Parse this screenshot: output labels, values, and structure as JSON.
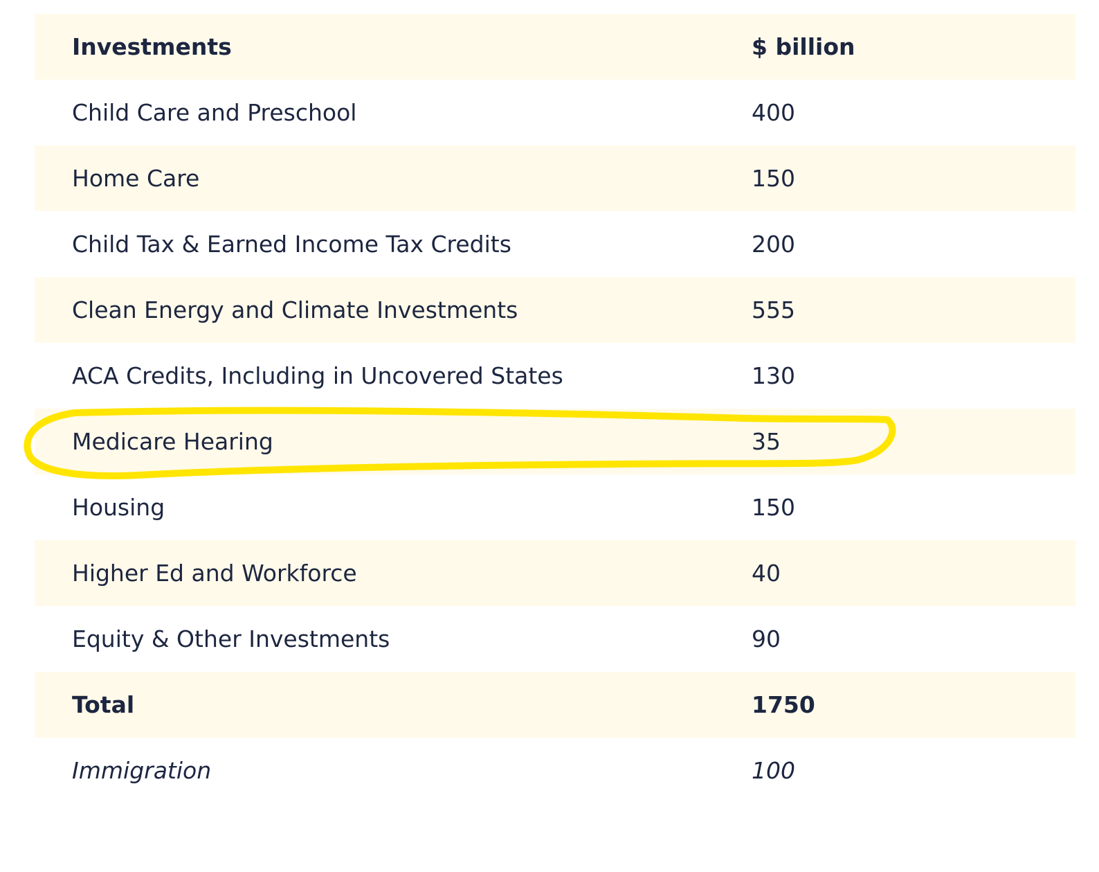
{
  "table": {
    "header": {
      "label": "Investments",
      "value": "$ billion"
    },
    "rows": [
      {
        "label": "Child Care and Preschool",
        "value": "400"
      },
      {
        "label": "Home Care",
        "value": "150"
      },
      {
        "label": "Child Tax & Earned Income Tax Credits",
        "value": "200"
      },
      {
        "label": "Clean Energy and Climate Investments",
        "value": "555"
      },
      {
        "label": "ACA Credits, Including in Uncovered States",
        "value": "130"
      },
      {
        "label": "Medicare Hearing",
        "value": "35"
      },
      {
        "label": "Housing",
        "value": "150"
      },
      {
        "label": "Higher Ed and Workforce",
        "value": "40"
      },
      {
        "label": "Equity & Other Investments",
        "value": "90"
      }
    ],
    "total": {
      "label": "Total",
      "value": "1750"
    },
    "extra": {
      "label": "Immigration",
      "value": "100"
    }
  },
  "colors": {
    "shaded_row": "#fffaea",
    "text": "#1d2640",
    "highlight": "#ffe500"
  }
}
